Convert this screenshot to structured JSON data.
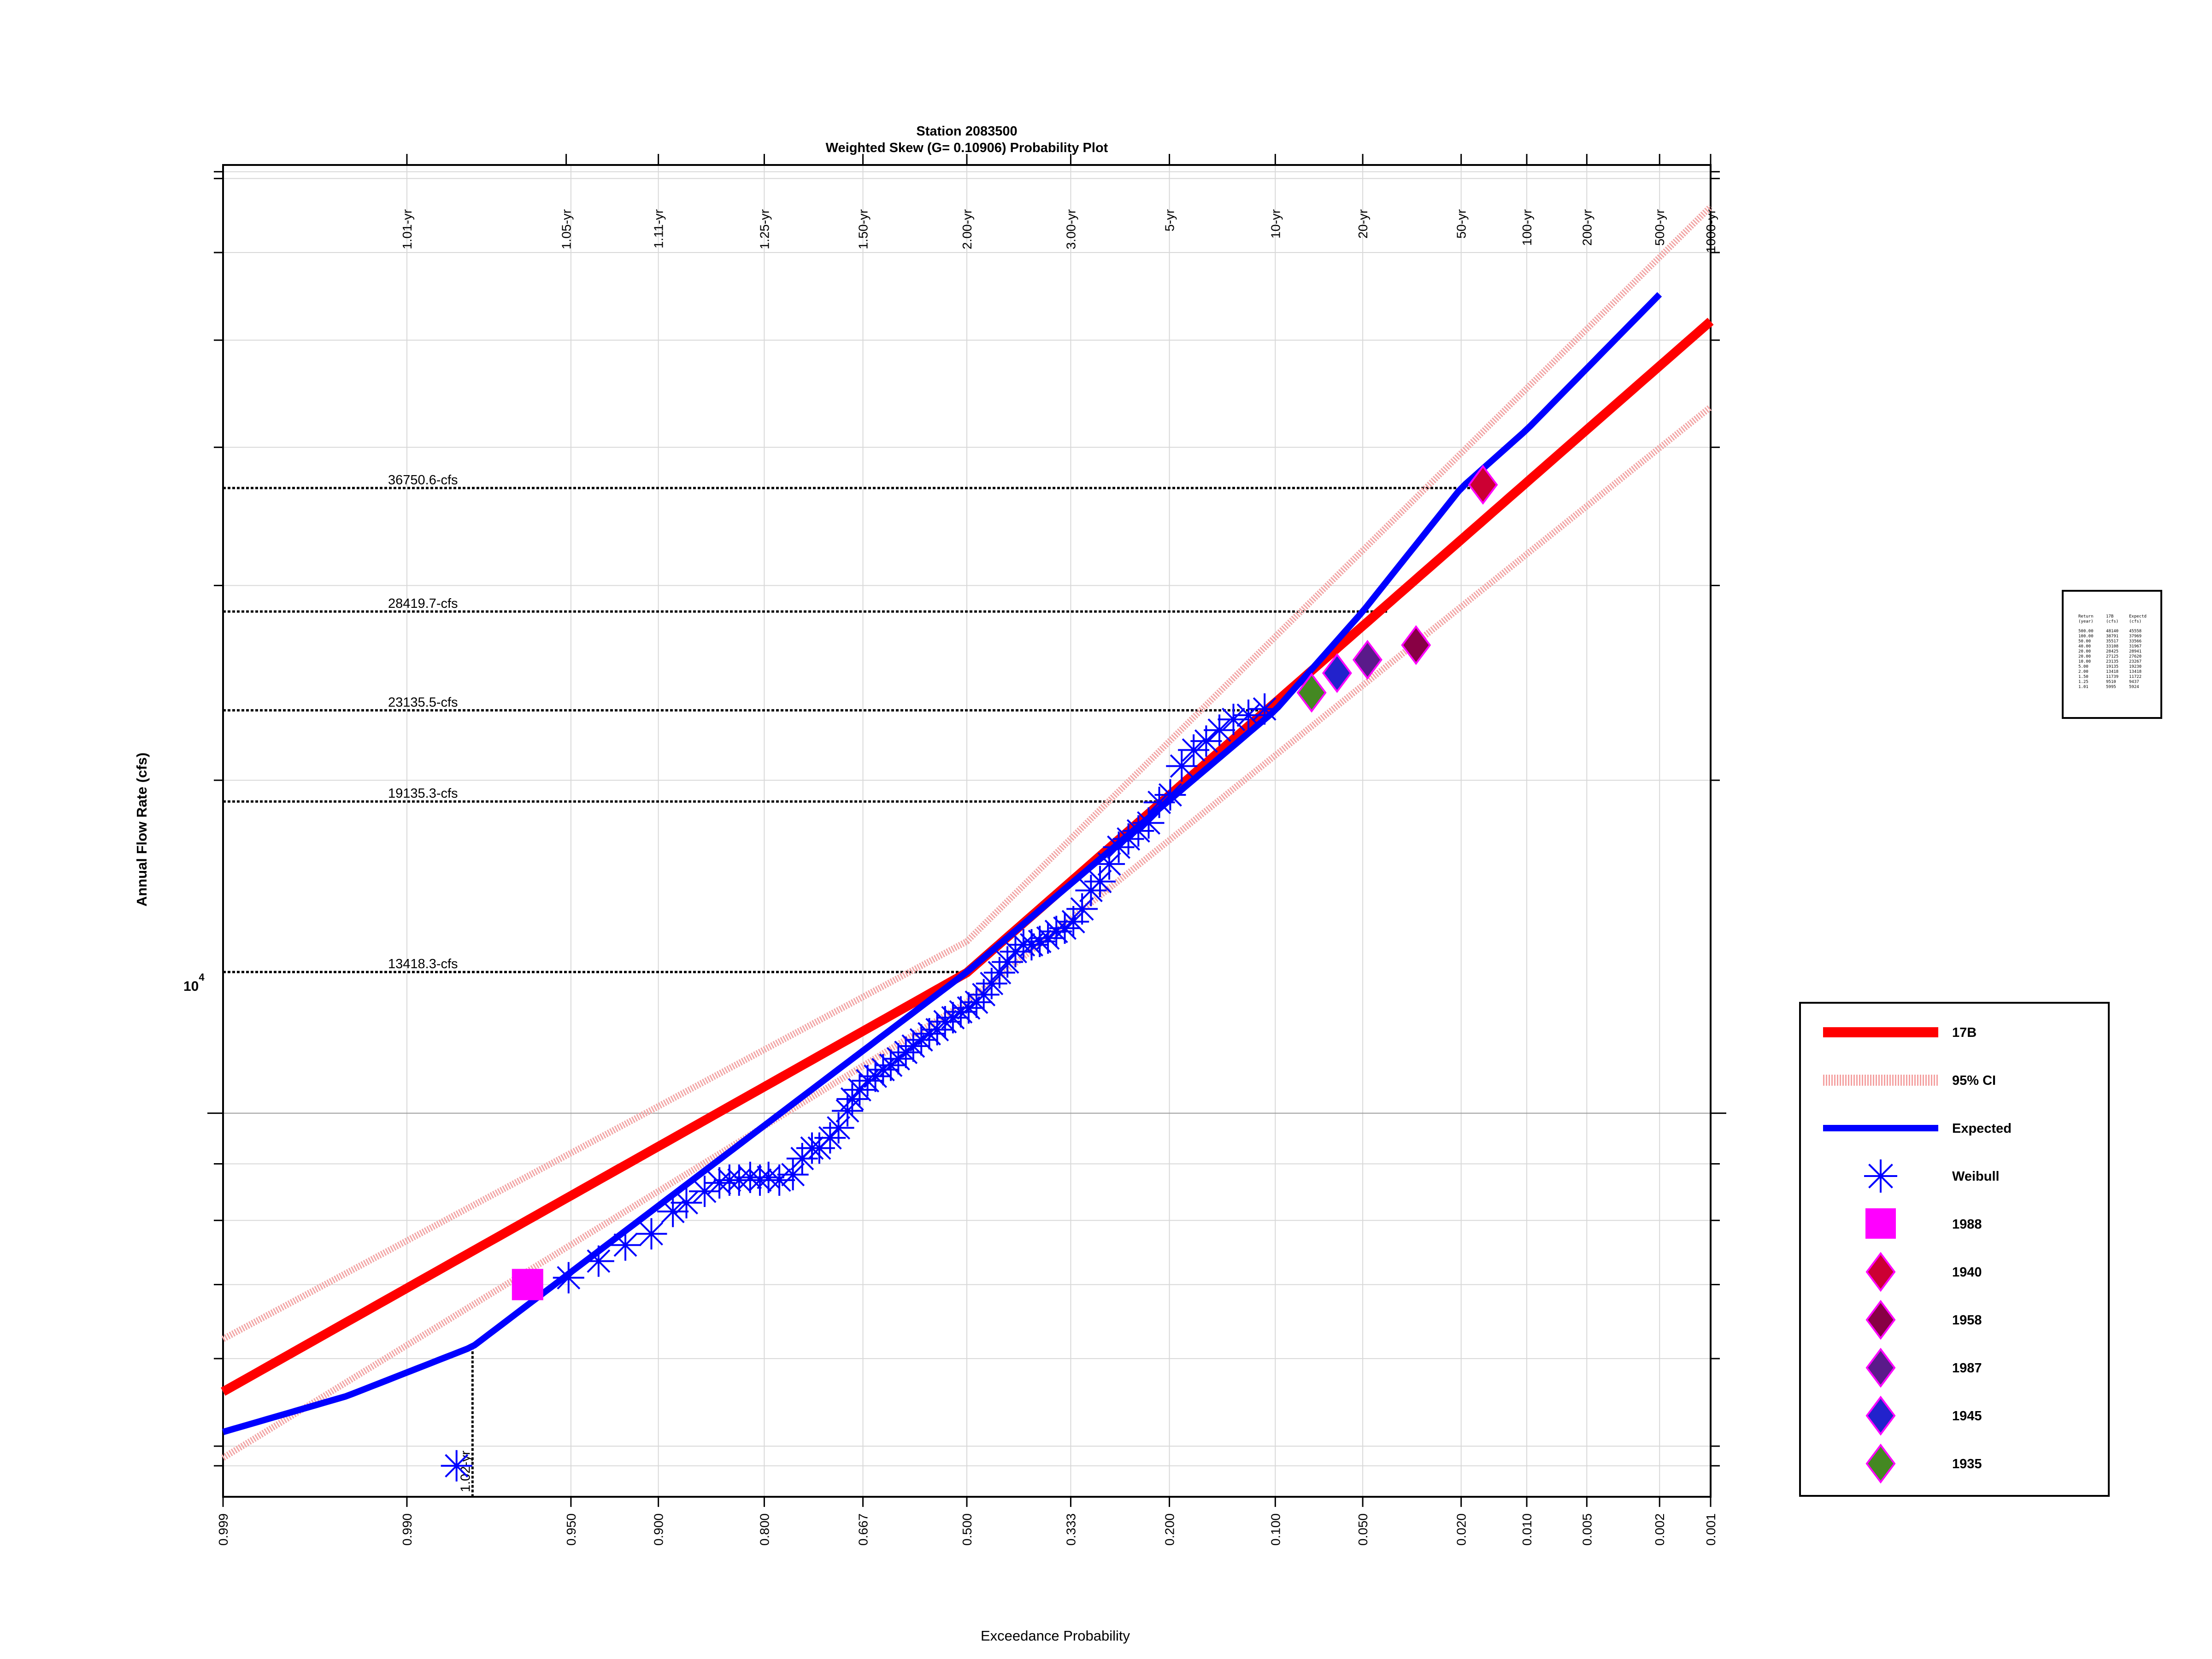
{
  "chart_data": {
    "type": "line",
    "title": "Station 2083500",
    "subtitle": "Weighted Skew (G= 0.10906) Probability Plot",
    "xlabel": "Exceedance Probability",
    "ylabel": "Annual Flow Rate (cfs)",
    "y_scale": "log",
    "x_scale": "normal-probability (reversed)",
    "xlim": [
      0.999,
      0.001
    ],
    "ylim": [
      4500,
      72000
    ],
    "y_tick_label": "10",
    "y_tick_label_exp": "4",
    "grid": true,
    "legend_position": "right",
    "x_ticks": [
      "0.999",
      "0.990",
      "0.950",
      "0.900",
      "0.800",
      "0.667",
      "0.500",
      "0.333",
      "0.200",
      "0.100",
      "0.050",
      "0.020",
      "0.010",
      "0.005",
      "0.002",
      "0.001"
    ],
    "return_periods": [
      {
        "label": "1.01-yr",
        "p": 0.99
      },
      {
        "label": "1.05-yr",
        "p": 0.952
      },
      {
        "label": "1.11-yr",
        "p": 0.9
      },
      {
        "label": "1.25-yr",
        "p": 0.8
      },
      {
        "label": "1.50-yr",
        "p": 0.667
      },
      {
        "label": "2.00-yr",
        "p": 0.5
      },
      {
        "label": "3.00-yr",
        "p": 0.333
      },
      {
        "label": "5-yr",
        "p": 0.2
      },
      {
        "label": "10-yr",
        "p": 0.1
      },
      {
        "label": "20-yr",
        "p": 0.05
      },
      {
        "label": "50-yr",
        "p": 0.02
      },
      {
        "label": "100-yr",
        "p": 0.01
      },
      {
        "label": "200-yr",
        "p": 0.005
      },
      {
        "label": "500-yr",
        "p": 0.002
      },
      {
        "label": "1000-yr",
        "p": 0.001
      }
    ],
    "reference_lines": [
      {
        "label": "36750.6-cfs",
        "value": 36750.6,
        "p": 0.016
      },
      {
        "label": "28419.7-cfs",
        "value": 28419.7,
        "p": 0.04
      },
      {
        "label": "23135.5-cfs",
        "value": 23135.5,
        "p": 0.11
      },
      {
        "label": "19135.3-cfs",
        "value": 19135.3,
        "p": 0.2
      },
      {
        "label": "13418.3-cfs",
        "value": 13418.3,
        "p": 0.5
      }
    ],
    "low_reference": {
      "label": "1.02-yr",
      "p": 0.98
    },
    "series": [
      {
        "name": "17B",
        "x": [
          0.999,
          0.5,
          0.001
        ],
        "y": [
          5600,
          13400,
          52000
        ]
      },
      {
        "name": "95% CI",
        "x": [
          0.999,
          0.5,
          0.001
        ],
        "y": [
          6250,
          14300,
          66000
        ]
      },
      {
        "name": "95% CI",
        "x": [
          0.999,
          0.5,
          0.001
        ],
        "y": [
          4880,
          12600,
          43500
        ]
      },
      {
        "name": "Expected",
        "x": [
          0.999,
          0.995,
          0.98,
          0.5,
          0.1,
          0.05,
          0.02,
          0.01,
          0.002
        ],
        "y": [
          5150,
          5550,
          6150,
          13418,
          23135,
          28419,
          36750,
          41500,
          55000
        ]
      }
    ],
    "weibull_points": {
      "name": "Weibull",
      "x": [
        0.983,
        0.951,
        0.937,
        0.922,
        0.905,
        0.889,
        0.878,
        0.862,
        0.848,
        0.838,
        0.828,
        0.816,
        0.805,
        0.795,
        0.782,
        0.765,
        0.753,
        0.74,
        0.73,
        0.715,
        0.703,
        0.69,
        0.683,
        0.672,
        0.66,
        0.648,
        0.636,
        0.624,
        0.612,
        0.6,
        0.588,
        0.575,
        0.562,
        0.549,
        0.536,
        0.523,
        0.51,
        0.497,
        0.484,
        0.472,
        0.459,
        0.446,
        0.433,
        0.42,
        0.407,
        0.394,
        0.381,
        0.368,
        0.355,
        0.342,
        0.329,
        0.316,
        0.303,
        0.29,
        0.277,
        0.264,
        0.251,
        0.238,
        0.225,
        0.212,
        0.199,
        0.186,
        0.173,
        0.16,
        0.147,
        0.134,
        0.121,
        0.108
      ],
      "y": [
        4800,
        7100,
        7350,
        7600,
        7780,
        8150,
        8300,
        8500,
        8650,
        8700,
        8700,
        8750,
        8700,
        8750,
        8700,
        8800,
        9100,
        9300,
        9300,
        9500,
        9700,
        10050,
        10300,
        10500,
        10700,
        10800,
        10950,
        11050,
        11200,
        11350,
        11500,
        11650,
        11800,
        11900,
        12100,
        12200,
        12350,
        12450,
        12600,
        12800,
        13100,
        13400,
        13700,
        14000,
        14200,
        14200,
        14300,
        14400,
        14600,
        14700,
        14900,
        15300,
        15900,
        16200,
        16800,
        17400,
        17700,
        18000,
        18300,
        19100,
        19400,
        20600,
        21300,
        21700,
        22200,
        22700,
        22900,
        23200
      ]
    },
    "historic_points": [
      {
        "name": "1988",
        "marker": "square",
        "color": "#ff00ff",
        "x": 0.966,
        "y": 7000
      },
      {
        "name": "1940",
        "marker": "diamond",
        "color": "#cc0033",
        "x": 0.016,
        "y": 37000
      },
      {
        "name": "1958",
        "marker": "diamond",
        "color": "#880044",
        "x": 0.031,
        "y": 26500
      },
      {
        "name": "1987",
        "marker": "diamond",
        "color": "#5a1a8a",
        "x": 0.048,
        "y": 25700
      },
      {
        "name": "1945",
        "marker": "diamond",
        "color": "#2222cc",
        "x": 0.062,
        "y": 25000
      },
      {
        "name": "1935",
        "marker": "diamond",
        "color": "#448822",
        "x": 0.076,
        "y": 24000
      }
    ],
    "legend": [
      {
        "label": "17B",
        "kind": "line",
        "color": "#ff0000"
      },
      {
        "label": "95% CI",
        "kind": "ci",
        "color": "#f4a0a0"
      },
      {
        "label": "Expected",
        "kind": "line",
        "color": "#0000ff"
      },
      {
        "label": "Weibull",
        "kind": "star",
        "color": "#0000ff"
      },
      {
        "label": "1988",
        "kind": "square",
        "color": "#ff00ff"
      },
      {
        "label": "1940",
        "kind": "diamond",
        "color": "#cc0033"
      },
      {
        "label": "1958",
        "kind": "diamond",
        "color": "#880044"
      },
      {
        "label": "1987",
        "kind": "diamond",
        "color": "#5a1a8a"
      },
      {
        "label": "1945",
        "kind": "diamond",
        "color": "#2222cc"
      },
      {
        "label": "1935",
        "kind": "diamond",
        "color": "#448822"
      }
    ],
    "summary_table": {
      "headers": [
        "Return",
        "17B",
        "Expectd"
      ],
      "units": [
        "(year)",
        "(cfs)",
        "(cfs)"
      ],
      "rows": [
        [
          "500.00",
          "48140",
          "45558"
        ],
        [
          "100.00",
          "38791",
          "37969"
        ],
        [
          "50.00",
          "35517",
          "33566"
        ],
        [
          "40.00",
          "33108",
          "31967"
        ],
        [
          "20.00",
          "28425",
          "28941"
        ],
        [
          "20.00",
          "27125",
          "27620"
        ],
        [
          "10.00",
          "23135",
          "23267"
        ],
        [
          "5.00",
          "19135",
          "19230"
        ],
        [
          "2.00",
          "13418",
          "13418"
        ],
        [
          "1.50",
          "11739",
          "11722"
        ],
        [
          "1.25",
          "9510",
          "9437"
        ],
        [
          "1.01",
          "5995",
          "5924"
        ]
      ]
    }
  }
}
